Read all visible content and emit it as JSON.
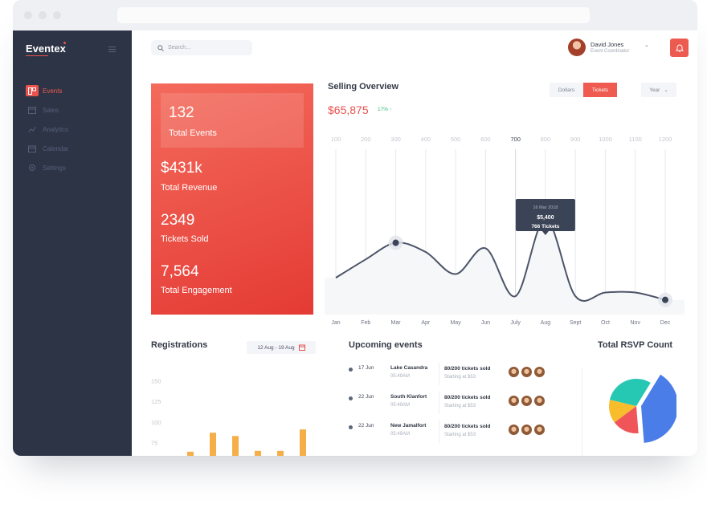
{
  "app": {
    "brand": "Eventex"
  },
  "sidebar": {
    "items": [
      {
        "label": "Events",
        "icon": "events-icon",
        "active": true
      },
      {
        "label": "Sales",
        "icon": "sales-icon",
        "active": false
      },
      {
        "label": "Analytics",
        "icon": "analytics-icon",
        "active": false
      },
      {
        "label": "Calendar",
        "icon": "calendar-icon",
        "active": false
      },
      {
        "label": "Settings",
        "icon": "settings-icon",
        "active": false
      }
    ]
  },
  "header": {
    "search_placeholder": "Search...",
    "user": {
      "name": "David Jones",
      "role": "Event Coordinator"
    }
  },
  "stats": [
    {
      "value": "132",
      "label": "Total Events"
    },
    {
      "value": "$431k",
      "label": "Total Revenue"
    },
    {
      "value": "2349",
      "label": "Tickets Sold"
    },
    {
      "value": "7,564",
      "label": "Total Engagement"
    }
  ],
  "selling": {
    "title": "Selling Overview",
    "amount": "$65,875",
    "change": "17% ↑",
    "toggle": {
      "dollars": "Dollars",
      "tickets": "Tickets",
      "period": "Year"
    }
  },
  "registrations": {
    "title": "Registrations",
    "date_range": "12 Aug - 19 Aug"
  },
  "upcoming": {
    "title": "Upcoming events",
    "events": [
      {
        "date": "17 Jun",
        "name": "Lake Casandra",
        "time": "05:49AM",
        "tickets": "80/200 tickets sold",
        "price": "Starting at $53"
      },
      {
        "date": "22 Jun",
        "name": "South Klanfort",
        "time": "05:49AM",
        "tickets": "80/200 tickets sold",
        "price": "Starting at $53"
      },
      {
        "date": "22 Jun",
        "name": "New Jamalfort",
        "time": "05:49AM",
        "tickets": "80/200 tickets sold",
        "price": "Starting at $53"
      }
    ]
  },
  "rsvp": {
    "title": "Total RSVP Count"
  },
  "colors": {
    "accent": "#e9524e",
    "sidebar": "#2c3446",
    "bar": "#f6ae48"
  },
  "chart_data": [
    {
      "type": "line",
      "top_axis": [
        "100",
        "200",
        "300",
        "400",
        "500",
        "600",
        "700",
        "800",
        "900",
        "1000",
        "1100",
        "1200"
      ],
      "categories": [
        "Jan",
        "Feb",
        "Mar",
        "Apr",
        "May",
        "Jun",
        "July",
        "Aug",
        "Sept",
        "Oct",
        "Nov",
        "Dec"
      ],
      "values": [
        3800,
        4300,
        4750,
        4500,
        3900,
        4600,
        3300,
        5400,
        3300,
        3400,
        3400,
        3200
      ],
      "ylim": [
        2800,
        6200
      ],
      "tooltip": {
        "date": "16 Mar 2018",
        "value": "$5,400",
        "count": "766 Tickets"
      }
    },
    {
      "type": "bar",
      "yticks": [
        "150",
        "125",
        "100",
        "75"
      ],
      "values": [
        65,
        88,
        84,
        66,
        66,
        92
      ],
      "ylim": [
        60,
        165
      ]
    },
    {
      "type": "pie",
      "slices": [
        {
          "value": 40,
          "color": "#4a7de8"
        },
        {
          "value": 16,
          "color": "#ef5559"
        },
        {
          "value": 14,
          "color": "#f8bd2d"
        },
        {
          "value": 30,
          "color": "#26c7b3"
        }
      ]
    }
  ]
}
